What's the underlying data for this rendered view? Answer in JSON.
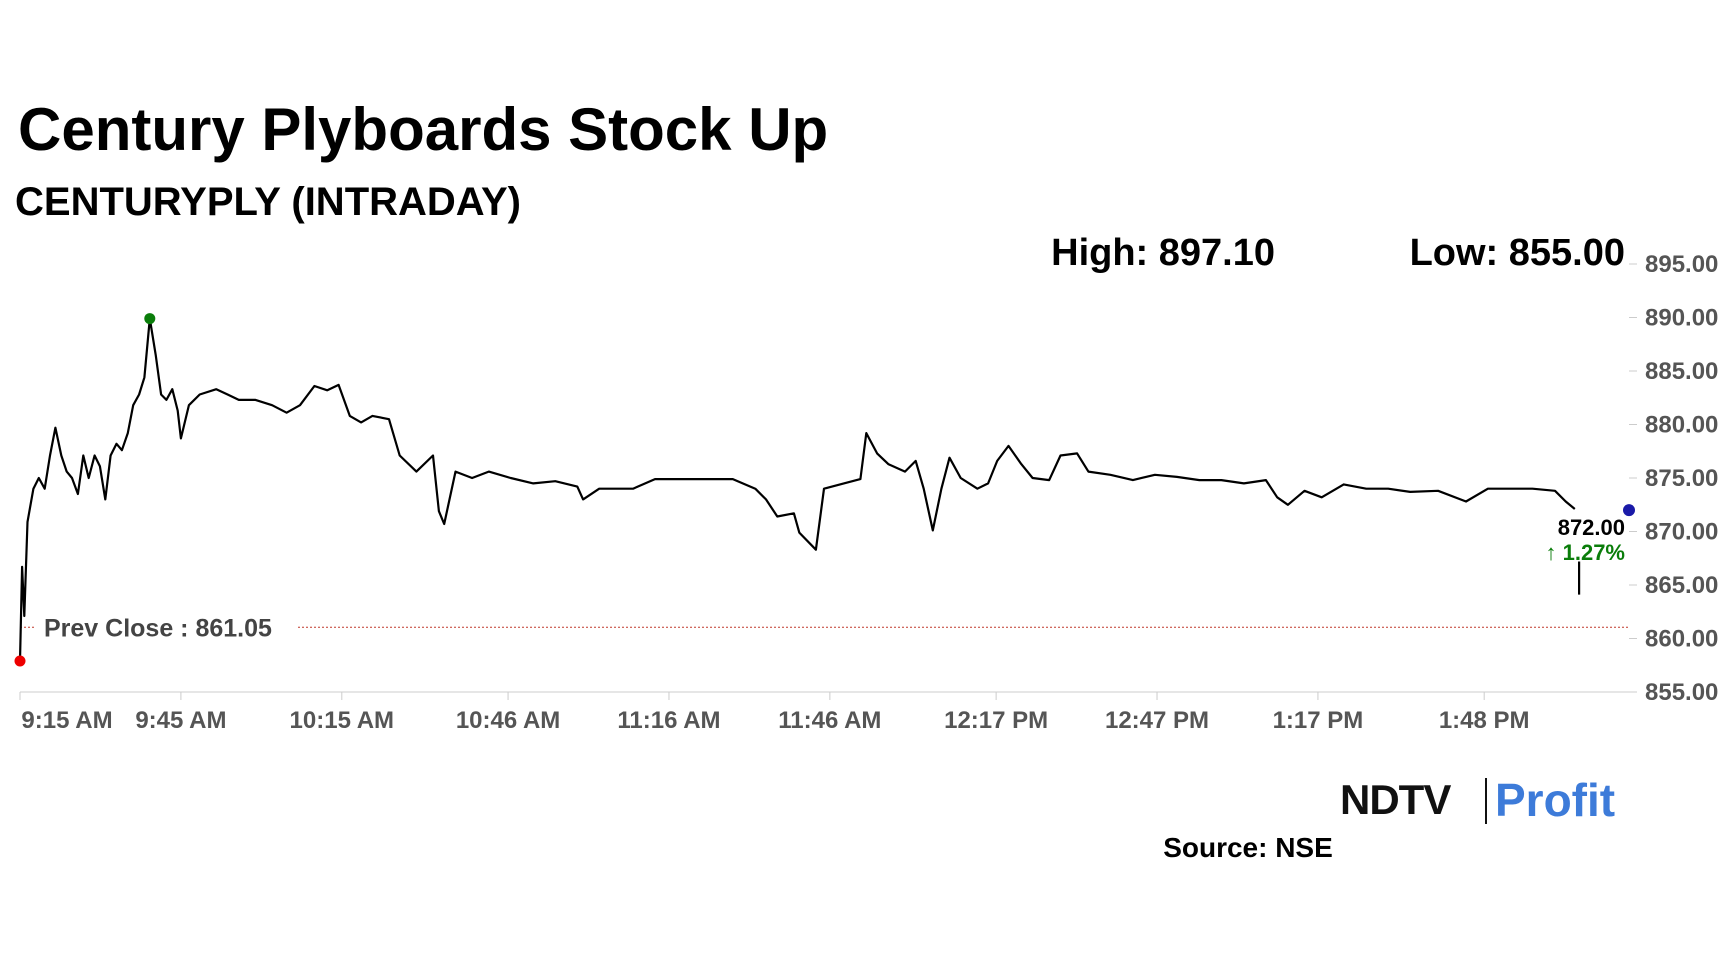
{
  "chart_data": {
    "type": "line",
    "title": "Century Plyboards Stock Up",
    "subtitle": "CENTURYPLY (INTRADAY)",
    "high": {
      "value": 897.1,
      "label": "High: 897.10"
    },
    "low": {
      "value": 855,
      "label": "Low: 855.00"
    },
    "prev_close": {
      "value": 861.05,
      "label": "Prev Close : 861.05"
    },
    "last": {
      "value": 872,
      "label": "872.00",
      "change": 1.27,
      "change_label": "↑ 1.27%"
    },
    "source": "Source: NSE",
    "brand": [
      "NDTV",
      "Profit"
    ],
    "xlim": [
      0,
      300
    ],
    "xticks": [
      {
        "value": 0,
        "label": "9:15 AM"
      },
      {
        "value": 30,
        "label": "9:45 AM"
      },
      {
        "value": 60,
        "label": "10:15 AM"
      },
      {
        "value": 91,
        "label": "10:46 AM"
      },
      {
        "value": 121,
        "label": "11:16 AM"
      },
      {
        "value": 151,
        "label": "11:46 AM"
      },
      {
        "value": 182,
        "label": "12:17 PM"
      },
      {
        "value": 212,
        "label": "12:47 PM"
      },
      {
        "value": 242,
        "label": "1:17 PM"
      },
      {
        "value": 273,
        "label": "1:48 PM"
      }
    ],
    "ylim": [
      855,
      895
    ],
    "yticks": [
      {
        "value": 855,
        "label": "855.00"
      },
      {
        "value": 860,
        "label": "860.00"
      },
      {
        "value": 865,
        "label": "865.00"
      },
      {
        "value": 870,
        "label": "870.00"
      },
      {
        "value": 875,
        "label": "875.00"
      },
      {
        "value": 880,
        "label": "880.00"
      },
      {
        "value": 885,
        "label": "885.00"
      },
      {
        "value": 890,
        "label": "890.00"
      },
      {
        "value": 895,
        "label": "895.00"
      }
    ],
    "color": "#000000",
    "x": [
      0,
      0.4,
      0.8,
      1.4,
      2.5,
      3.5,
      4.6,
      5.6,
      6.6,
      7.7,
      8.7,
      9.7,
      10.8,
      11.8,
      12.8,
      13.9,
      14.9,
      15.9,
      16.9,
      18,
      19,
      20.1,
      21.1,
      22.2,
      23.2,
      24.2,
      25.3,
      26.3,
      27.3,
      28.4,
      29.4,
      30,
      31.5,
      33.5,
      36.6,
      38.7,
      40.8,
      43.9,
      47,
      49.7,
      52.2,
      54.9,
      57.3,
      59.4,
      61.5,
      63.6,
      65.7,
      68.8,
      70.8,
      73.9,
      77,
      78.1,
      79.1,
      81.2,
      84.3,
      87.4,
      91.5,
      95.7,
      99.8,
      103.9,
      105,
      108,
      114.3,
      118.4,
      124.6,
      132.9,
      137.1,
      139.1,
      141.2,
      144.3,
      145.3,
      148.4,
      149.9,
      153.6,
      156.7,
      157.8,
      159.8,
      161.9,
      165,
      167,
      168.5,
      170.2,
      171.8,
      173.3,
      175.4,
      178.5,
      180.5,
      182.2,
      184.3,
      186.7,
      188.8,
      191.9,
      194,
      197.1,
      199.2,
      203.3,
      207.5,
      211.6,
      215.7,
      219.9,
      224,
      228.2,
      232.3,
      234.4,
      236.4,
      239.5,
      242.7,
      246.8,
      251,
      255.1,
      259.2,
      264.4,
      269.6,
      273.7,
      277.9,
      282,
      286.2,
      288.2,
      289.9,
      null,
      290.7,
      290.7
    ],
    "values": [
      857.9,
      866.7,
      862.1,
      870.9,
      874,
      875,
      874,
      877.1,
      879.7,
      877.1,
      875.6,
      875,
      873.5,
      877.1,
      875,
      877.1,
      876.1,
      873,
      877.1,
      878.2,
      877.6,
      879.2,
      881.8,
      882.8,
      884.4,
      889.9,
      886.5,
      882.8,
      882.3,
      883.3,
      881.3,
      878.7,
      881.8,
      882.8,
      883.3,
      882.8,
      882.3,
      882.3,
      881.8,
      881.1,
      881.8,
      883.6,
      883.2,
      883.7,
      880.8,
      880.2,
      880.8,
      880.5,
      877.1,
      875.6,
      877.1,
      871.9,
      870.7,
      875.6,
      875,
      875.6,
      875,
      874.5,
      874.7,
      874.2,
      873,
      874,
      874,
      874.9,
      874.9,
      874.9,
      874,
      873,
      871.4,
      871.7,
      869.9,
      868.3,
      874,
      874.5,
      874.9,
      879.2,
      877.3,
      876.3,
      875.6,
      876.6,
      874,
      870.1,
      874,
      876.9,
      875,
      874,
      874.5,
      876.6,
      878,
      876.3,
      875,
      874.8,
      877.1,
      877.3,
      875.6,
      875.3,
      874.8,
      875.3,
      875.1,
      874.8,
      874.8,
      874.5,
      874.8,
      873.2,
      872.5,
      873.8,
      873.2,
      874.4,
      874,
      874,
      873.7,
      873.8,
      872.8,
      874,
      874,
      874,
      873.8,
      872.8,
      872.1,
      null,
      864.1,
      867.2
    ]
  }
}
